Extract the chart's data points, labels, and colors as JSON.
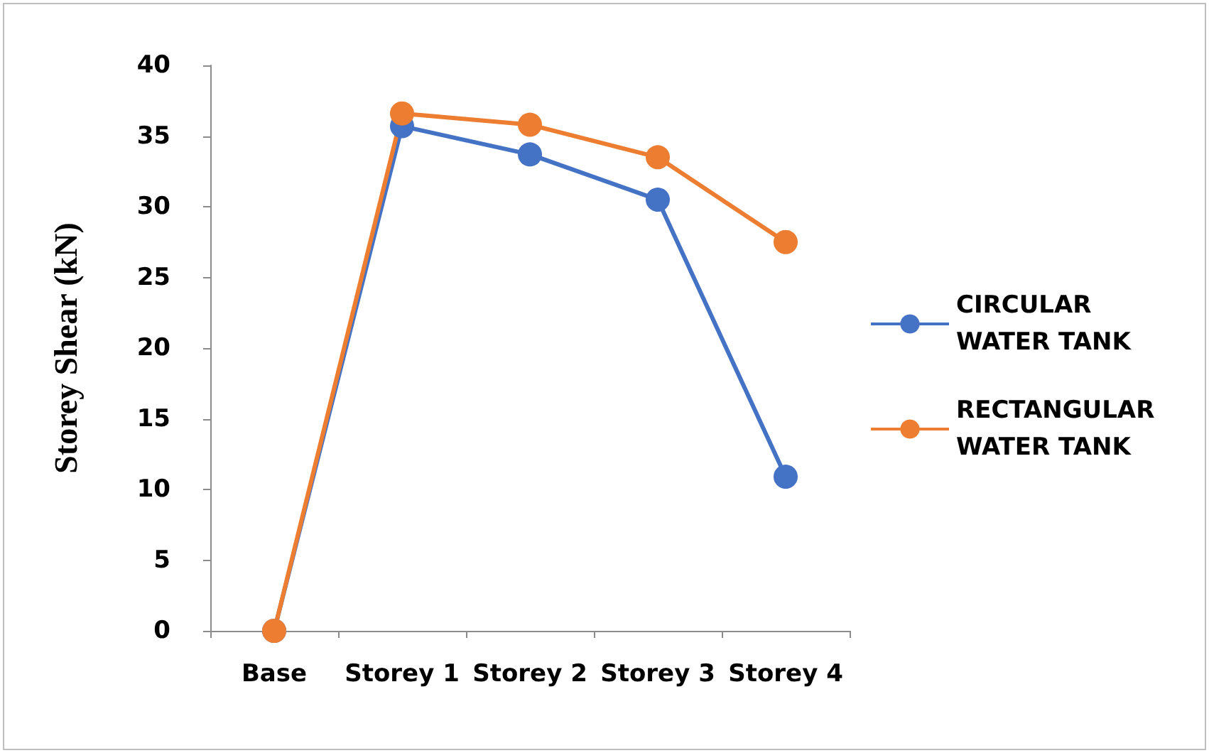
{
  "chart_data": {
    "type": "line",
    "ylabel": "Storey Shear (kN)",
    "categories": [
      "Base",
      "Storey 1",
      "Storey 2",
      "Storey 3",
      "Storey 4"
    ],
    "series": [
      {
        "name": "CIRCULAR WATER TANK",
        "color": "#4472c4",
        "values": [
          0,
          35.7,
          33.7,
          30.5,
          10.9
        ]
      },
      {
        "name": "RECTANGULAR WATER TANK",
        "color": "#ed7d31",
        "values": [
          0,
          36.6,
          35.8,
          33.5,
          27.5
        ]
      }
    ],
    "ylim": [
      0,
      40
    ],
    "yticks": [
      0,
      5,
      10,
      15,
      20,
      25,
      30,
      35,
      40
    ],
    "grid": false,
    "legend": "right",
    "marker": "circle",
    "line_style": "solid"
  }
}
